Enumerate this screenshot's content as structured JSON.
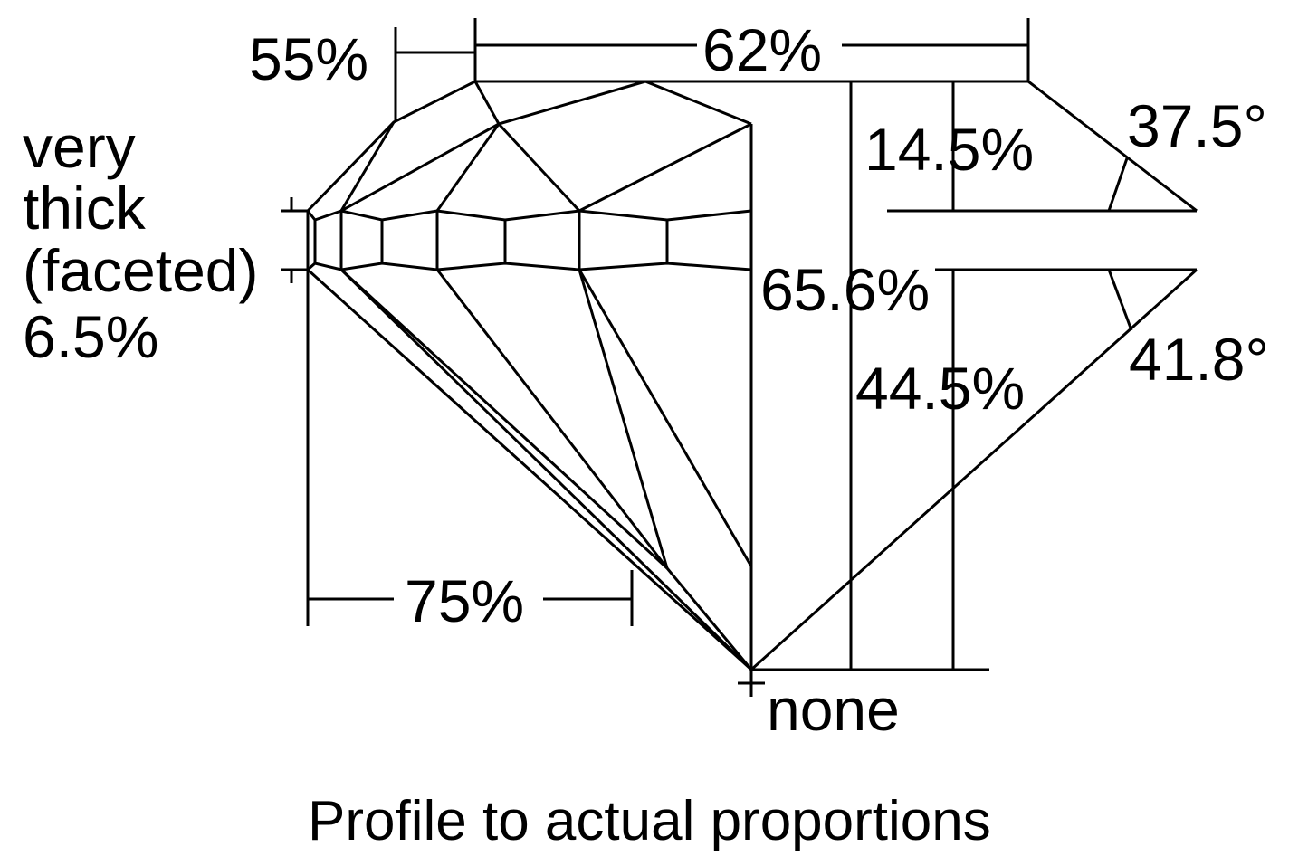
{
  "diagram": {
    "caption": "Profile to actual proportions",
    "labels": {
      "table": "55%",
      "table_width": "62%",
      "girdle_line1": "very",
      "girdle_line2": "thick",
      "girdle_line3": "(faceted)",
      "girdle_value": "6.5%",
      "crown_height": "14.5%",
      "crown_angle": "37.5°",
      "total_depth": "65.6%",
      "pavilion_depth": "44.5%",
      "pavilion_angle": "41.8°",
      "lower_half": "75%",
      "culet": "none"
    },
    "line_color": "#000000",
    "background": "#ffffff"
  }
}
